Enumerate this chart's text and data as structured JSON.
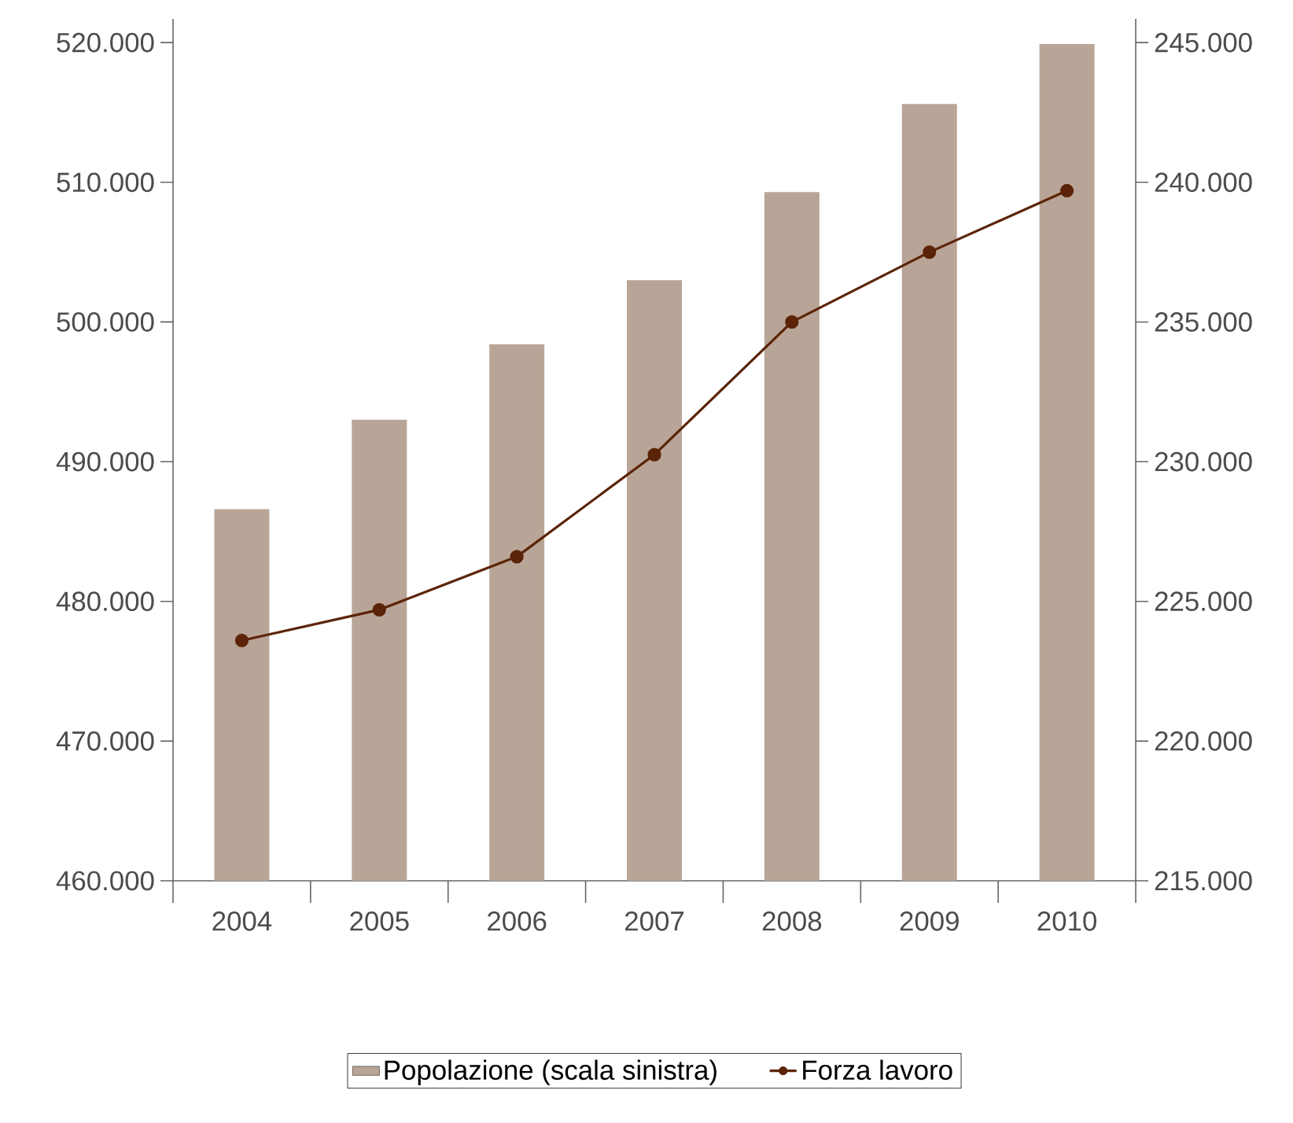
{
  "chart_data": {
    "type": "bar",
    "categories": [
      "2004",
      "2005",
      "2006",
      "2007",
      "2008",
      "2009",
      "2010"
    ],
    "series": [
      {
        "name": "Popolazione (scala sinistra)",
        "color": "#b9a597",
        "values": [
          486600,
          493000,
          498400,
          503000,
          509300,
          515600,
          519900
        ]
      },
      {
        "name": "Forza lavoro",
        "type": "line",
        "axis": "y2",
        "color": "#5b2408",
        "marker": "circle",
        "values": [
          223600,
          224700,
          226600,
          230250,
          235000,
          237500,
          239700
        ]
      }
    ],
    "ylim": [
      460000,
      521700
    ],
    "yticks": [
      {
        "value": 460000,
        "label": "460.000"
      },
      {
        "value": 470000,
        "label": "470.000"
      },
      {
        "value": 480000,
        "label": "480.000"
      },
      {
        "value": 490000,
        "label": "490.000"
      },
      {
        "value": 500000,
        "label": "500.000"
      },
      {
        "value": 510000,
        "label": "510.000"
      },
      {
        "value": 520000,
        "label": "520.000"
      }
    ],
    "y2lim": [
      215000,
      245850
    ],
    "y2ticks": [
      {
        "value": 215000,
        "label": "215.000"
      },
      {
        "value": 220000,
        "label": "220.000"
      },
      {
        "value": 225000,
        "label": "225.000"
      },
      {
        "value": 230000,
        "label": "230.000"
      },
      {
        "value": 235000,
        "label": "235.000"
      },
      {
        "value": 240000,
        "label": "240.000"
      },
      {
        "value": 245000,
        "label": "245.000"
      }
    ],
    "legend": "bottom"
  }
}
